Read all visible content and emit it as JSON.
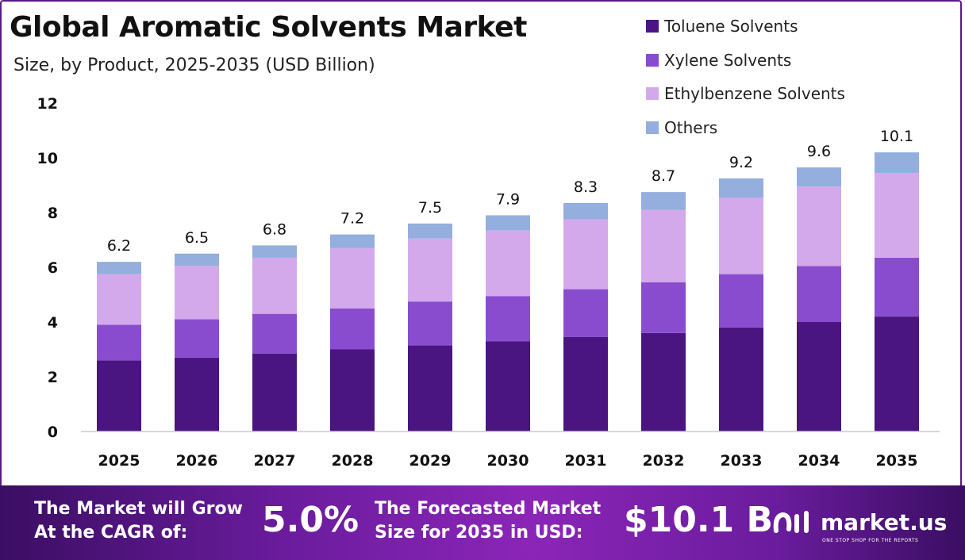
{
  "header": {
    "title": "Global Aromatic Solvents Market",
    "subtitle": "Size, by Product, 2025-2035 (USD Billion)"
  },
  "chart_data": {
    "type": "bar",
    "stacked": true,
    "categories": [
      "2025",
      "2026",
      "2027",
      "2028",
      "2029",
      "2030",
      "2031",
      "2032",
      "2033",
      "2034",
      "2035"
    ],
    "series": [
      {
        "name": "Toluene Solvents",
        "color": "#4a1580",
        "values": [
          2.6,
          2.7,
          2.85,
          3.0,
          3.15,
          3.3,
          3.45,
          3.6,
          3.8,
          4.0,
          4.2
        ]
      },
      {
        "name": "Xylene Solvents",
        "color": "#8a4ccf",
        "values": [
          1.3,
          1.4,
          1.45,
          1.5,
          1.6,
          1.65,
          1.75,
          1.85,
          1.95,
          2.05,
          2.15
        ]
      },
      {
        "name": "Ethylbenzene Solvents",
        "color": "#d3a9ec",
        "values": [
          1.85,
          1.95,
          2.05,
          2.2,
          2.3,
          2.4,
          2.55,
          2.65,
          2.8,
          2.9,
          3.1
        ]
      },
      {
        "name": "Others",
        "color": "#94aede",
        "values": [
          0.45,
          0.45,
          0.45,
          0.5,
          0.55,
          0.55,
          0.6,
          0.65,
          0.7,
          0.7,
          0.75
        ]
      }
    ],
    "totals": [
      "6.2",
      "6.5",
      "6.8",
      "7.2",
      "7.5",
      "7.9",
      "8.3",
      "8.7",
      "9.2",
      "9.6",
      "10.1"
    ],
    "ylim": [
      0,
      12
    ],
    "yticks": [
      "0",
      "2",
      "4",
      "6",
      "8",
      "10",
      "12"
    ],
    "legend_position": "top-right",
    "grid": false
  },
  "footer": {
    "cagr_label_line1": "The Market will Grow",
    "cagr_label_line2": "At the CAGR of:",
    "cagr_value": "5.0%",
    "forecast_label_line1": "The Forecasted Market",
    "forecast_label_line2": "Size for 2035 in USD:",
    "forecast_value": "$10.1 B",
    "brand_name": "market.us",
    "brand_tagline": "ONE STOP SHOP FOR THE REPORTS"
  }
}
